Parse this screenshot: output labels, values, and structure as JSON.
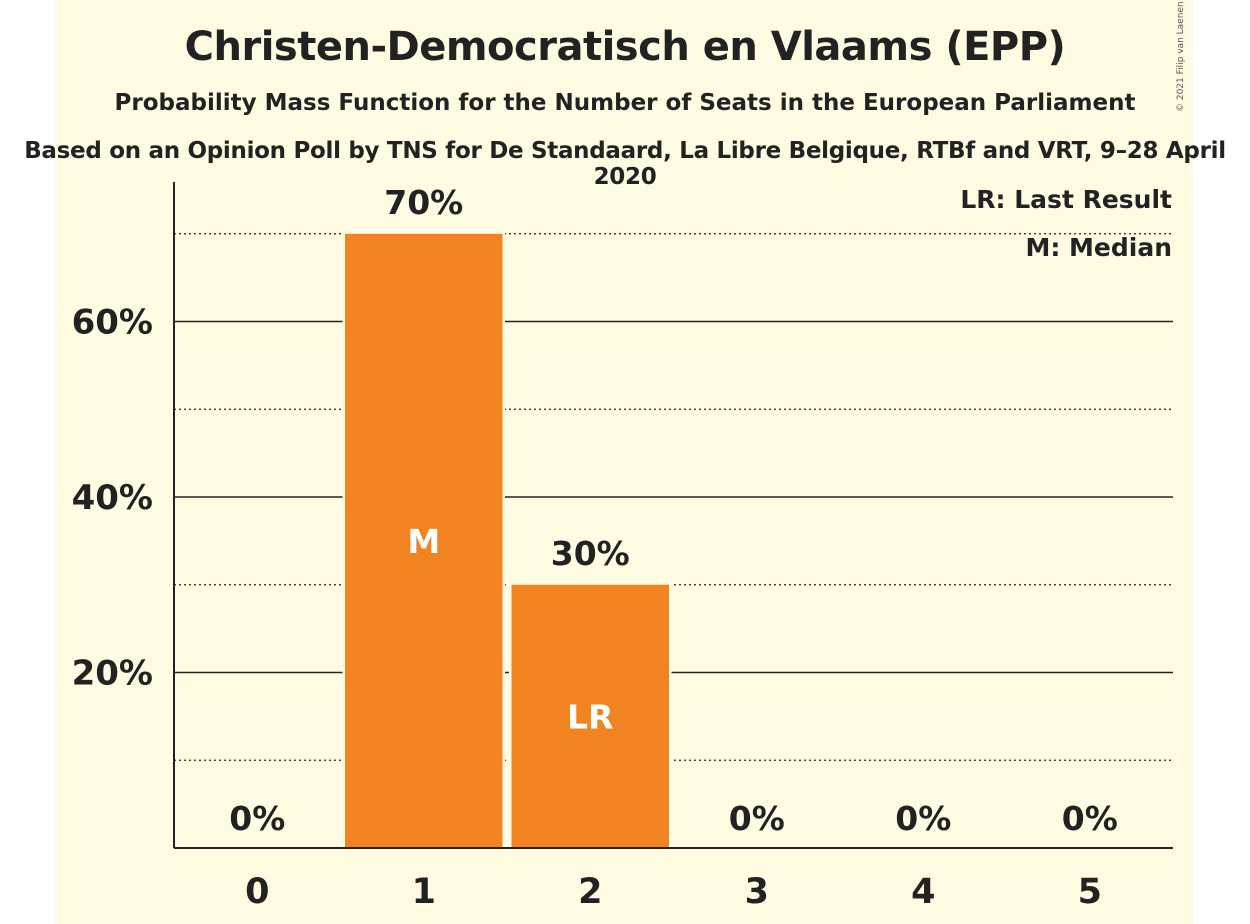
{
  "header": {
    "title": "Christen-Democratisch en Vlaams (EPP)",
    "subtitle": "Probability Mass Function for the Number of Seats in the European Parliament",
    "source": "Based on an Opinion Poll by TNS for De Standaard, La Libre Belgique, RTBf and VRT, 9–28 April 2020",
    "copyright": "© 2021 Filip van Laenen"
  },
  "legend": {
    "last_result": "LR: Last Result",
    "median": "M: Median"
  },
  "colors": {
    "bar": "#F18421",
    "background": "#FFFBE3",
    "text": "#222222"
  },
  "chart_data": {
    "type": "bar",
    "title": "Christen-Democratisch en Vlaams (EPP)",
    "categories": [
      "0",
      "1",
      "2",
      "3",
      "4",
      "5"
    ],
    "values": [
      0,
      70,
      30,
      0,
      0,
      0
    ],
    "value_labels": [
      "0%",
      "70%",
      "30%",
      "0%",
      "0%",
      "0%"
    ],
    "bar_markers": [
      "",
      "M",
      "LR",
      "",
      "",
      ""
    ],
    "ylim": [
      0,
      76
    ],
    "y_ticks": [
      20,
      40,
      60
    ],
    "y_tick_labels": [
      "20%",
      "40%",
      "60%"
    ],
    "minor_gridlines": [
      10,
      30,
      50,
      70
    ],
    "legend_position": "top-right"
  }
}
